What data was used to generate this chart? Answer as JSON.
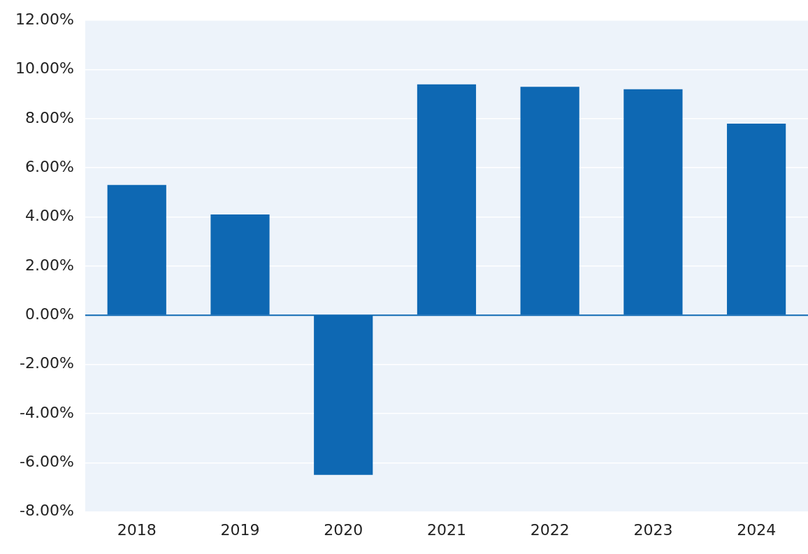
{
  "chart_data": {
    "type": "bar",
    "categories": [
      "2018",
      "2019",
      "2020",
      "2021",
      "2022",
      "2023",
      "2024"
    ],
    "values": [
      5.3,
      4.1,
      -6.5,
      9.4,
      9.3,
      9.2,
      7.8
    ],
    "color": "#0e68b3",
    "ylim": [
      -8,
      12
    ],
    "yticks": [
      {
        "value": -8,
        "label": "-8.00%"
      },
      {
        "value": -6,
        "label": "-6.00%"
      },
      {
        "value": -4,
        "label": "-4.00%"
      },
      {
        "value": -2,
        "label": "-2.00%"
      },
      {
        "value": 0,
        "label": "0.00%"
      },
      {
        "value": 2,
        "label": "2.00%"
      },
      {
        "value": 4,
        "label": "4.00%"
      },
      {
        "value": 6,
        "label": "6.00%"
      },
      {
        "value": 8,
        "label": "8.00%"
      },
      {
        "value": 10,
        "label": "10.00%"
      },
      {
        "value": 12,
        "label": "12.00%"
      }
    ],
    "ref_lines": [
      {
        "axis": "y",
        "value": 0,
        "color": "#0e68b3"
      }
    ],
    "grid": "y",
    "legend": false
  }
}
